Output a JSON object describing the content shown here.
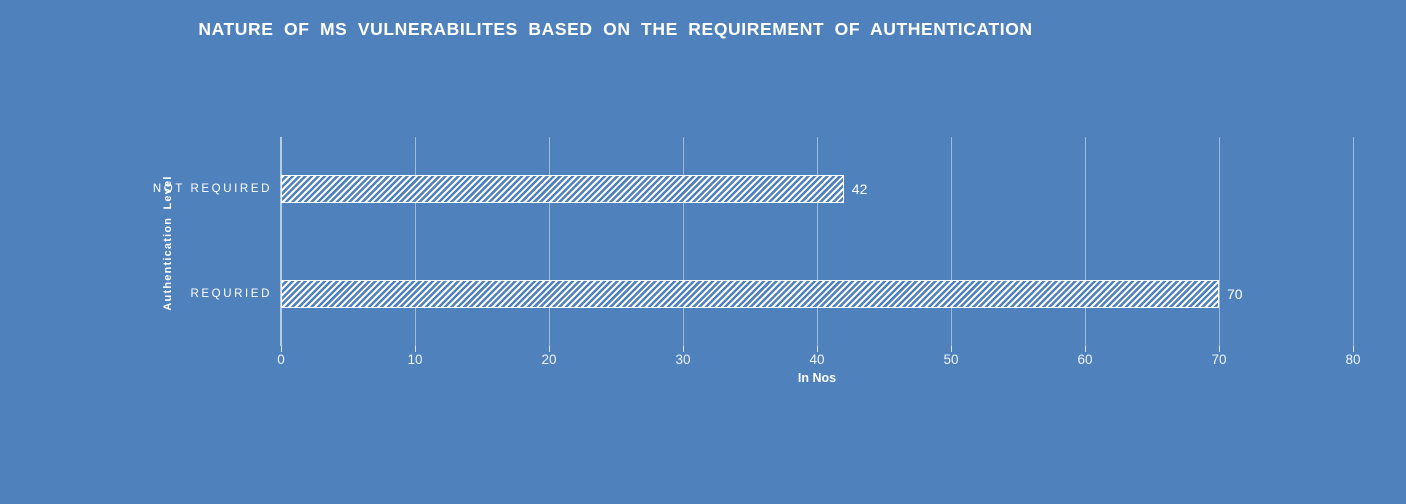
{
  "chart_data": {
    "type": "bar",
    "orientation": "horizontal",
    "title": "NATURE OF MS VULNERABILITES BASED ON THE REQUIREMENT OF AUTHENTICATION",
    "xlabel": "In Nos",
    "ylabel": "Authentication Level",
    "categories": [
      "NOT REQUIRED",
      "REQURIED"
    ],
    "values": [
      42,
      70
    ],
    "data_labels": [
      "42",
      "70"
    ],
    "xlim": [
      0,
      80
    ],
    "xticks": [
      0,
      10,
      20,
      30,
      40,
      50,
      60,
      70,
      80
    ],
    "grid": true,
    "legend": false,
    "bar_pattern": "diagonal-hatch",
    "colors": {
      "background": "#4f81bd",
      "text": "#ffffff",
      "bar_hatch_foreground": "#ffffff",
      "bar_hatch_background": "#4f81bd",
      "bar_border": "#ffffff",
      "gridline": "rgba(255,255,255,0.45)",
      "axis_line": "rgba(255,255,255,0.6)",
      "tick_mark": "rgba(255,255,255,0.8)",
      "tick_label": "rgba(255,255,255,0.9)"
    }
  }
}
